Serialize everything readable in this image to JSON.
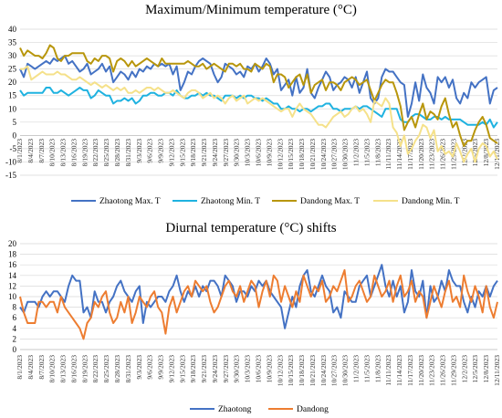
{
  "chart_data": [
    {
      "type": "line",
      "title": "Maximum/Minimum temperature (°C)",
      "ylim": [
        -15,
        40
      ],
      "yticks": [
        -15,
        -10,
        -5,
        0,
        5,
        10,
        15,
        20,
        25,
        30,
        35,
        40
      ],
      "x_tick_labels": [
        "8/1/2023",
        "8/4/2023",
        "8/7/2023",
        "8/10/2023",
        "8/13/2023",
        "8/16/2023",
        "8/19/2023",
        "8/22/2023",
        "8/25/2023",
        "8/28/2023",
        "8/31/2023",
        "9/3/2023",
        "9/6/2023",
        "9/9/2023",
        "9/12/2023",
        "9/15/2023",
        "9/18/2023",
        "9/21/2023",
        "9/24/2023",
        "9/27/2023",
        "9/30/2023",
        "10/3/2023",
        "10/6/2023",
        "10/9/2023",
        "10/12/2023",
        "10/15/2023",
        "10/18/2023",
        "10/21/2023",
        "10/24/2023",
        "10/27/2023",
        "10/30/2023",
        "11/2/2023",
        "11/5/2023",
        "11/8/2023",
        "11/11/2023",
        "11/14/2023",
        "11/17/2023",
        "11/20/2023",
        "11/23/2023",
        "11/26/2023",
        "11/29/2023",
        "12/2/2023",
        "12/5/2023",
        "12/8/2023",
        "12/11/2023"
      ],
      "grid": true,
      "legend_position": "bottom",
      "series": [
        {
          "name": "Zhaotong Max. T",
          "color": "#4472C4",
          "values": [
            25,
            22,
            27,
            26,
            25,
            26,
            27,
            28,
            27,
            29,
            28,
            29,
            30,
            27,
            28,
            26,
            24,
            25,
            27,
            23,
            24,
            25,
            27,
            24,
            26,
            20,
            22,
            24,
            23,
            21,
            24,
            22,
            25,
            24,
            26,
            25,
            27,
            26,
            27,
            26,
            27,
            23,
            26,
            17,
            20,
            24,
            23,
            26,
            28,
            29,
            28,
            27,
            23,
            20,
            22,
            27,
            26,
            25,
            23,
            24,
            22,
            26,
            25,
            27,
            24,
            26,
            29,
            27,
            23,
            25,
            17,
            19,
            21,
            15,
            22,
            16,
            18,
            25,
            16,
            14,
            18,
            21,
            24,
            22,
            17,
            19,
            20,
            22,
            21,
            18,
            22,
            16,
            20,
            24,
            14,
            12,
            14,
            22,
            25,
            24,
            24,
            22,
            20,
            19,
            7,
            12,
            20,
            13,
            23,
            18,
            16,
            12,
            22,
            20,
            22,
            18,
            21,
            14,
            12,
            16,
            14,
            20,
            18,
            20,
            21,
            22,
            12,
            17,
            18
          ]
        },
        {
          "name": "Zhaotong Min. T",
          "color": "#1FB2E0",
          "values": [
            17,
            15,
            16,
            16,
            16,
            16,
            16,
            18,
            18,
            16,
            16,
            17,
            16,
            15,
            16,
            17,
            18,
            17,
            17,
            14,
            15,
            17,
            16,
            15,
            15,
            12,
            13,
            13,
            14,
            13,
            14,
            12,
            13,
            15,
            15,
            16,
            16,
            15,
            15,
            16,
            16,
            15,
            17,
            15,
            14,
            14,
            15,
            15,
            16,
            15,
            16,
            15,
            15,
            14,
            13,
            15,
            15,
            15,
            14,
            15,
            14,
            15,
            15,
            14,
            14,
            13,
            14,
            13,
            12,
            12,
            10,
            10,
            11,
            10,
            10,
            9,
            10,
            10,
            9,
            10,
            11,
            11,
            12,
            12,
            10,
            10,
            9,
            10,
            10,
            10,
            11,
            10,
            11,
            11,
            10,
            9,
            8,
            7,
            10,
            10,
            10,
            10,
            6,
            5,
            5,
            7,
            8,
            8,
            7,
            6,
            6,
            7,
            7,
            6,
            7,
            6,
            6,
            6,
            6,
            5,
            4,
            4,
            4,
            4,
            5,
            4,
            6,
            3,
            5
          ]
        },
        {
          "name": "Dandong Max. T",
          "color": "#B8960C",
          "values": [
            33,
            30,
            32,
            31,
            30,
            30,
            29,
            31,
            34,
            33,
            29,
            28,
            30,
            30,
            31,
            31,
            31,
            31,
            28,
            27,
            29,
            28,
            30,
            30,
            29,
            24,
            28,
            29,
            28,
            26,
            28,
            26,
            27,
            28,
            29,
            28,
            27,
            26,
            29,
            27,
            27,
            27,
            27,
            27,
            27,
            28,
            27,
            26,
            26,
            27,
            25,
            26,
            27,
            26,
            25,
            24,
            27,
            27,
            26,
            27,
            25,
            25,
            24,
            27,
            26,
            25,
            27,
            26,
            20,
            23,
            23,
            22,
            18,
            20,
            22,
            23,
            19,
            23,
            16,
            19,
            20,
            21,
            17,
            20,
            20,
            19,
            17,
            20,
            21,
            22,
            21,
            19,
            20,
            21,
            17,
            13,
            16,
            19,
            21,
            20,
            20,
            16,
            11,
            2,
            5,
            7,
            3,
            8,
            12,
            6,
            9,
            8,
            6,
            11,
            14,
            8,
            3,
            5,
            0,
            -4,
            -2,
            -2,
            2,
            5,
            7,
            4,
            -1,
            -2,
            -3
          ]
        },
        {
          "name": "Dandong Min. T",
          "color": "#F5E18A",
          "values": [
            25,
            25,
            26,
            21,
            22,
            23,
            24,
            23,
            23,
            23,
            24,
            23,
            23,
            22,
            21,
            21,
            22,
            21,
            20,
            19,
            20,
            19,
            18,
            19,
            18,
            17,
            18,
            17,
            18,
            16,
            16,
            17,
            16,
            17,
            18,
            18,
            17,
            18,
            17,
            16,
            16,
            17,
            16,
            15,
            14,
            16,
            17,
            17,
            16,
            14,
            15,
            16,
            14,
            15,
            14,
            12,
            14,
            15,
            13,
            14,
            15,
            12,
            13,
            14,
            13,
            14,
            13,
            12,
            11,
            10,
            9,
            10,
            10,
            7,
            10,
            12,
            10,
            9,
            8,
            6,
            4,
            4,
            3,
            5,
            7,
            8,
            9,
            7,
            8,
            10,
            11,
            9,
            10,
            8,
            5,
            13,
            12,
            11,
            14,
            12,
            3,
            1,
            -4,
            0,
            -7,
            -5,
            -2,
            0,
            4,
            3,
            -1,
            2,
            -6,
            -4,
            -7,
            -6,
            -8,
            -3,
            -6,
            -10,
            -7,
            -5,
            -10,
            -5,
            -3,
            -4,
            -8,
            -6,
            -9
          ]
        }
      ]
    },
    {
      "type": "line",
      "title": "Diurnal temperature (°C) shifts",
      "ylim": [
        0,
        20
      ],
      "yticks": [
        0,
        2,
        4,
        6,
        8,
        10,
        12,
        14,
        16,
        18,
        20
      ],
      "x_tick_labels": [
        "8/1/2023",
        "8/4/2023",
        "8/7/2023",
        "8/10/2023",
        "8/13/2023",
        "8/16/2023",
        "8/19/2023",
        "8/22/2023",
        "8/25/2023",
        "8/28/2023",
        "8/31/2023",
        "9/3/2023",
        "9/6/2023",
        "9/9/2023",
        "9/12/2023",
        "9/15/2023",
        "9/18/2023",
        "9/21/2023",
        "9/24/2023",
        "9/27/2023",
        "9/30/2023",
        "10/3/2023",
        "10/6/2023",
        "10/9/2023",
        "10/12/2023",
        "10/15/2023",
        "10/18/2023",
        "10/21/2023",
        "10/24/2023",
        "10/27/2023",
        "10/30/2023",
        "11/2/2023",
        "11/5/2023",
        "11/8/2023",
        "11/11/2023",
        "11/14/2023",
        "11/17/2023",
        "11/20/2023",
        "11/23/2023",
        "11/26/2023",
        "11/29/2023",
        "12/2/2023",
        "12/5/2023",
        "12/8/2023",
        "12/11/2023"
      ],
      "grid": true,
      "legend_position": "bottom",
      "series": [
        {
          "name": "Zhaotong",
          "color": "#4472C4",
          "values": [
            8,
            7,
            9,
            9,
            9,
            8,
            10,
            11,
            10,
            11,
            11,
            10,
            9,
            12,
            14,
            13,
            13,
            7,
            8,
            6,
            11,
            9,
            9,
            7,
            9,
            10,
            12,
            13,
            11,
            10,
            9,
            11,
            12,
            5,
            9,
            8,
            9,
            10,
            10,
            9,
            11,
            12,
            14,
            11,
            9,
            11,
            10,
            12,
            10,
            12,
            11,
            13,
            13,
            12,
            10,
            14,
            13,
            12,
            9,
            11,
            11,
            10,
            12,
            11,
            13,
            12,
            13,
            11,
            10,
            9,
            8,
            4,
            7,
            10,
            8,
            12,
            14,
            15,
            11,
            10,
            12,
            14,
            12,
            11,
            7,
            8,
            6,
            11,
            10,
            9,
            9,
            12,
            13,
            14,
            10,
            12,
            14,
            16,
            12,
            10,
            13,
            10,
            12,
            7,
            9,
            15,
            11,
            10,
            13,
            6,
            12,
            9,
            10,
            13,
            11,
            15,
            13,
            12,
            12,
            9,
            7,
            10,
            8,
            11,
            10,
            12,
            10,
            12,
            13
          ]
        },
        {
          "name": "Dandong",
          "color": "#ED7D31",
          "values": [
            10,
            7,
            5,
            5,
            5,
            9,
            9,
            8,
            9,
            9,
            7,
            10,
            8,
            7,
            6,
            5,
            4,
            2,
            5,
            6,
            9,
            8,
            10,
            11,
            7,
            5,
            6,
            9,
            7,
            10,
            5,
            7,
            10,
            9,
            8,
            10,
            11,
            8,
            7,
            3,
            8,
            10,
            7,
            9,
            11,
            12,
            10,
            13,
            12,
            11,
            12,
            9,
            7,
            8,
            10,
            12,
            13,
            11,
            10,
            12,
            9,
            11,
            13,
            12,
            8,
            11,
            13,
            10,
            14,
            13,
            9,
            12,
            10,
            8,
            11,
            9,
            14,
            12,
            10,
            12,
            11,
            13,
            9,
            10,
            12,
            11,
            13,
            15,
            9,
            10,
            12,
            13,
            11,
            9,
            10,
            14,
            12,
            10,
            11,
            13,
            9,
            12,
            14,
            10,
            11,
            13,
            9,
            11,
            10,
            6,
            9,
            12,
            10,
            8,
            11,
            13,
            9,
            10,
            8,
            14,
            11,
            9,
            12,
            10,
            7,
            12,
            8,
            6,
            9
          ]
        }
      ]
    }
  ]
}
